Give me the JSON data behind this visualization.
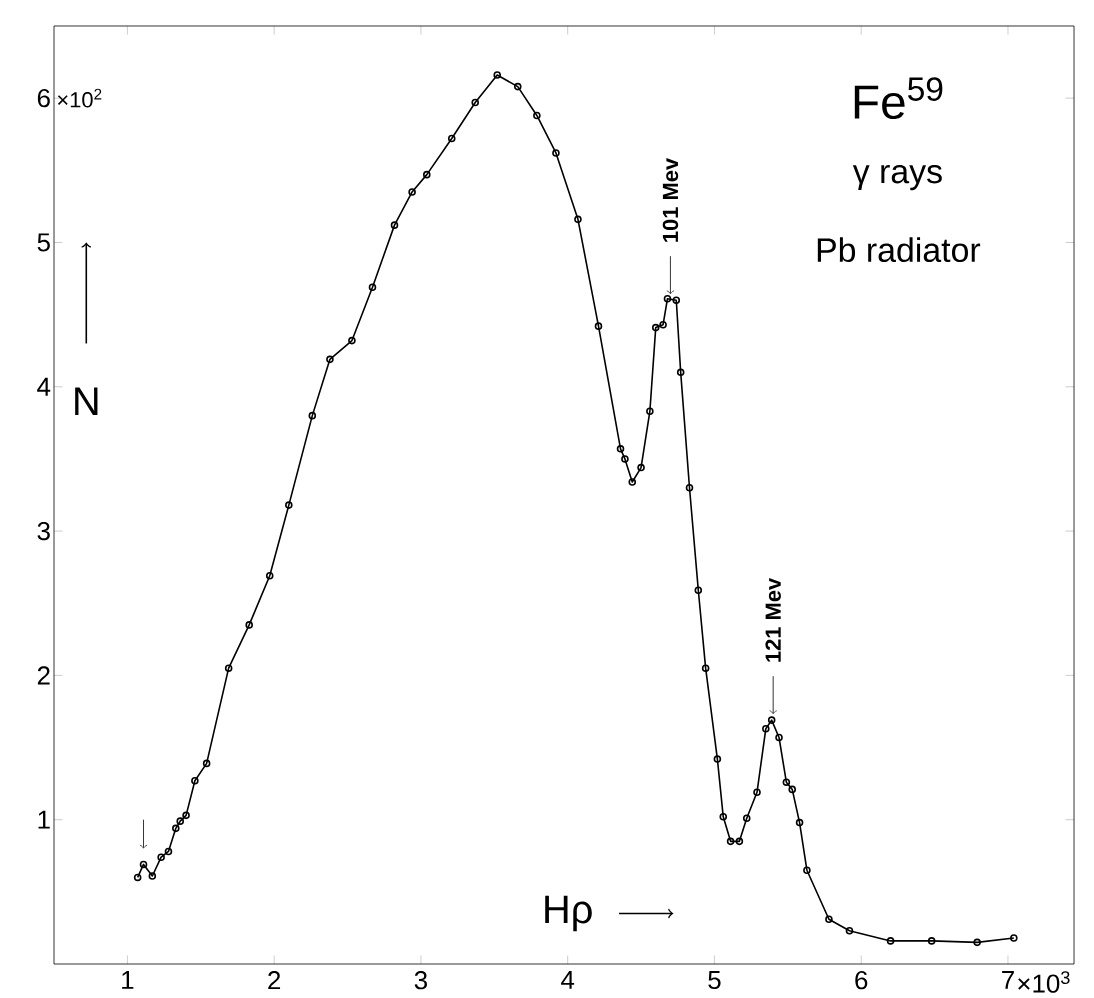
{
  "chart_data": {
    "type": "line",
    "xlabel": "Hρ",
    "ylabel": "N",
    "annotations": [
      {
        "text": "101 Mev",
        "x": 4.7,
        "y": 4.6
      },
      {
        "text": "121 Mev",
        "x": 5.4,
        "y": 1.69
      },
      "Fe$^{59}$",
      "γ rays",
      "Pb radiator",
      "×10$^{2}$",
      "×10$^{3}$"
    ],
    "x": [
      1.07,
      1.11,
      1.17,
      1.23,
      1.28,
      1.33,
      1.36,
      1.4,
      1.46,
      1.54,
      1.69,
      1.83,
      1.97,
      2.1,
      2.26,
      2.38,
      2.53,
      2.67,
      2.82,
      2.94,
      3.04,
      3.21,
      3.37,
      3.52,
      3.66,
      3.79,
      3.92,
      4.07,
      4.21,
      4.36,
      4.39,
      4.44,
      4.5,
      4.56,
      4.6,
      4.65,
      4.68,
      4.74,
      4.77,
      4.83,
      4.89,
      4.94,
      5.02,
      5.06,
      5.11,
      5.17,
      5.22,
      5.29,
      5.35,
      5.39,
      5.44,
      5.49,
      5.53,
      5.58,
      5.63,
      5.78,
      5.92,
      6.2,
      6.48,
      6.79,
      7.04
    ],
    "series": [
      {
        "color": "#000000",
        "values": [
          0.6,
          0.69,
          0.61,
          0.74,
          0.78,
          0.94,
          0.99,
          1.03,
          1.27,
          1.39,
          2.05,
          2.35,
          2.69,
          3.18,
          3.8,
          4.19,
          4.32,
          4.69,
          5.12,
          5.35,
          5.47,
          5.72,
          5.97,
          6.16,
          6.08,
          5.88,
          5.62,
          5.16,
          4.42,
          3.57,
          3.5,
          3.34,
          3.44,
          3.83,
          4.41,
          4.43,
          4.61,
          4.6,
          4.1,
          3.3,
          2.59,
          2.05,
          1.42,
          1.02,
          0.85,
          0.85,
          1.01,
          1.19,
          1.63,
          1.69,
          1.57,
          1.26,
          1.21,
          0.98,
          0.65,
          0.31,
          0.23,
          0.16,
          0.16,
          0.15,
          0.18
        ]
      }
    ],
    "xlim": [
      0.5,
      7.45
    ],
    "ylim": [
      0,
      6.5
    ],
    "xticks": [
      1,
      2,
      3,
      4,
      5,
      6,
      7
    ],
    "yticks": [
      1,
      2,
      3,
      4,
      5,
      6
    ],
    "marker": "circle",
    "line_style": "solid",
    "grid": false,
    "legend": false
  }
}
